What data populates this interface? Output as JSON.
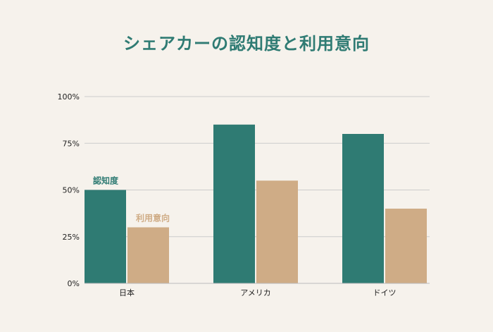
{
  "chart_data": {
    "type": "bar",
    "title": "シェアカーの認知度と利用意向",
    "categories": [
      "日本",
      "アメリカ",
      "ドイツ"
    ],
    "series": [
      {
        "name": "認知度",
        "values": [
          50,
          85,
          80
        ],
        "color": "#2f7b73"
      },
      {
        "name": "利用意向",
        "values": [
          30,
          55,
          40
        ],
        "color": "#cfac86"
      }
    ],
    "ylim": [
      0,
      100
    ],
    "yticks": [
      0,
      25,
      50,
      75,
      100
    ],
    "ytick_labels": [
      "0%",
      "25%",
      "50%",
      "75%",
      "100%"
    ],
    "grid": true,
    "legend": "inline-labels-above-first-category",
    "colors": {
      "title": "#2f7b73",
      "grid": "#cccccc",
      "background": "#f6f2ec"
    }
  }
}
